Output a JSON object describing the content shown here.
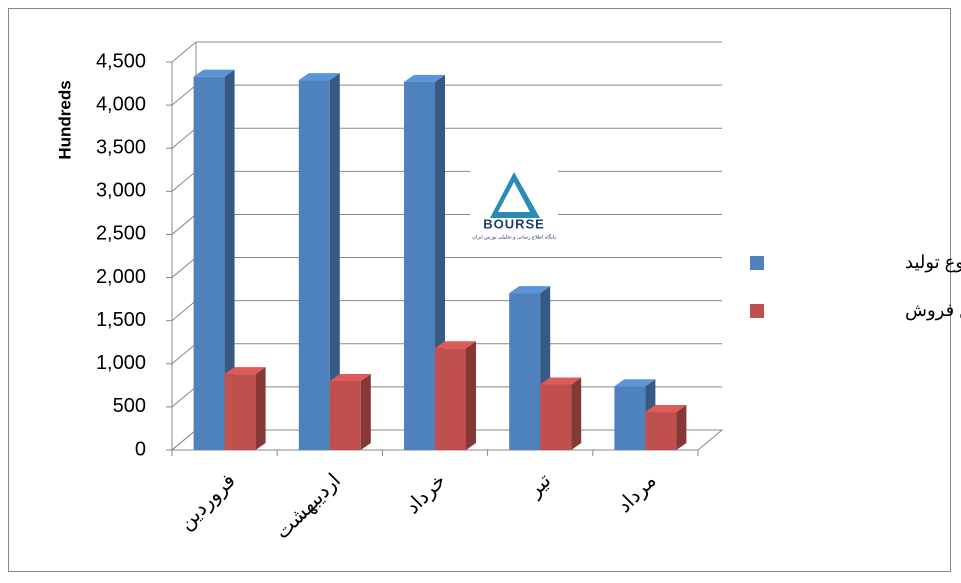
{
  "chart_data": {
    "type": "bar3d",
    "y_label": "Hundreds",
    "categories": [
      "فروردین",
      "اردیبهشت",
      "خرداد",
      "تیر",
      "مرداد"
    ],
    "series": [
      {
        "name": "مجموع تولید",
        "color": "#4f81bd",
        "values": [
          4330,
          4290,
          4270,
          1820,
          740
        ]
      },
      {
        "name": "مجموع فروش",
        "color": "#c0504d",
        "values": [
          880,
          800,
          1180,
          760,
          440
        ]
      }
    ],
    "ylim": [
      0,
      4500
    ],
    "yticks": [
      0,
      500,
      {
        "value": 1000,
        "label": "1,000"
      },
      {
        "value": 1500,
        "label": "1,500"
      },
      {
        "value": 2000,
        "label": "2,000"
      },
      {
        "value": 2500,
        "label": "2,500"
      },
      {
        "value": 3000,
        "label": "3,000"
      },
      {
        "value": 3500,
        "label": "3,500"
      },
      {
        "value": 4000,
        "label": "4,000"
      },
      {
        "value": 4500,
        "label": "4,500"
      }
    ],
    "grid": true,
    "legend": "right",
    "watermark": "BOURSE",
    "watermark_subtitle": "پایگاه اطلاع رسانی و تحلیلی بورس ایران"
  }
}
